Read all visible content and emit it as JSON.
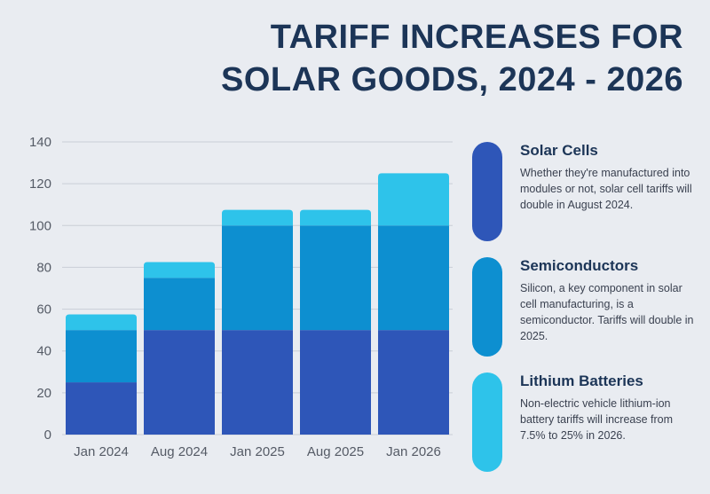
{
  "title_line1": "TARIFF INCREASES FOR",
  "title_line2": "SOLAR GOODS, 2024 - 2026",
  "chart_data": {
    "type": "bar",
    "stacked": true,
    "categories": [
      "Jan 2024",
      "Aug 2024",
      "Jan 2025",
      "Aug 2025",
      "Jan 2026"
    ],
    "series": [
      {
        "name": "Solar Cells",
        "values": [
          25,
          50,
          50,
          50,
          50
        ],
        "color": "#2e56b8"
      },
      {
        "name": "Semiconductors",
        "values": [
          25,
          25,
          50,
          50,
          50
        ],
        "color": "#0d8fd0"
      },
      {
        "name": "Lithium Batteries",
        "values": [
          7.5,
          7.5,
          7.5,
          7.5,
          25
        ],
        "color": "#2ec3ea"
      }
    ],
    "ylim": [
      0,
      140
    ],
    "yticks": [
      0,
      20,
      40,
      60,
      80,
      100,
      120,
      140
    ],
    "grid": true
  },
  "legend": [
    {
      "title": "Solar Cells",
      "desc": "Whether they're manufactured into modules or not, solar cell tariffs will double in August 2024.",
      "color": "#2e56b8"
    },
    {
      "title": "Semiconductors",
      "desc": "Silicon, a key component in solar cell manufacturing, is a semiconductor. Tariffs will double in 2025.",
      "color": "#0d8fd0"
    },
    {
      "title": "Lithium Batteries",
      "desc": "Non-electric vehicle lithium-ion battery tariffs will increase from 7.5% to 25% in 2026.",
      "color": "#2ec3ea"
    }
  ]
}
